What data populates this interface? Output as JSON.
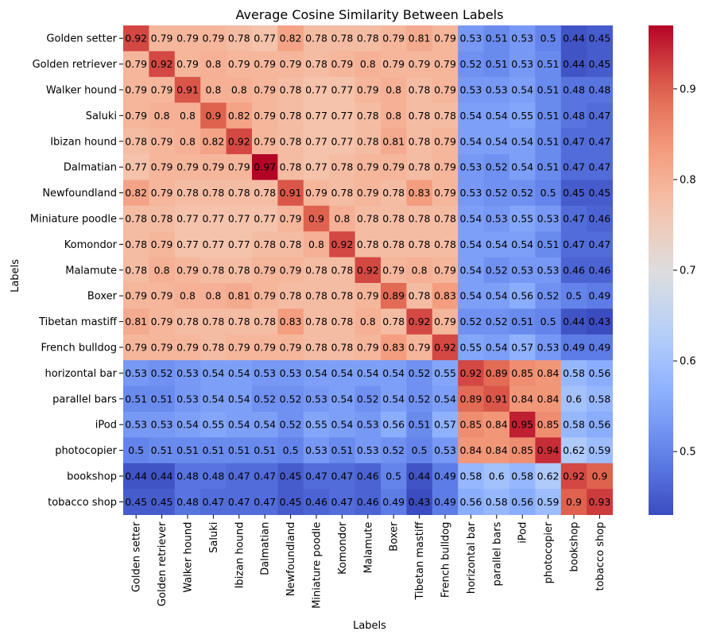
{
  "chart_data": {
    "type": "heatmap",
    "title": "Average Cosine Similarity Between Labels",
    "xlabel": "Labels",
    "ylabel": "Labels",
    "labels": [
      "Golden setter",
      "Golden retriever",
      "Walker hound",
      "Saluki",
      "Ibizan hound",
      "Dalmatian",
      "Newfoundland",
      "Miniature poodle",
      "Komondor",
      "Malamute",
      "Boxer",
      "Tibetan mastiff",
      "French bulldog",
      "horizontal bar",
      "parallel bars",
      "iPod",
      "photocopier",
      "bookshop",
      "tobacco shop"
    ],
    "values": [
      [
        0.92,
        0.79,
        0.79,
        0.79,
        0.78,
        0.77,
        0.82,
        0.78,
        0.78,
        0.78,
        0.79,
        0.81,
        0.79,
        0.53,
        0.51,
        0.53,
        0.5,
        0.44,
        0.45
      ],
      [
        0.79,
        0.92,
        0.79,
        0.8,
        0.79,
        0.79,
        0.79,
        0.78,
        0.79,
        0.8,
        0.79,
        0.79,
        0.79,
        0.52,
        0.51,
        0.53,
        0.51,
        0.44,
        0.45
      ],
      [
        0.79,
        0.79,
        0.91,
        0.8,
        0.8,
        0.79,
        0.78,
        0.77,
        0.77,
        0.79,
        0.8,
        0.78,
        0.79,
        0.53,
        0.53,
        0.54,
        0.51,
        0.48,
        0.48
      ],
      [
        0.79,
        0.8,
        0.8,
        0.9,
        0.82,
        0.79,
        0.78,
        0.77,
        0.77,
        0.78,
        0.8,
        0.78,
        0.78,
        0.54,
        0.54,
        0.55,
        0.51,
        0.48,
        0.47
      ],
      [
        0.78,
        0.79,
        0.8,
        0.82,
        0.92,
        0.79,
        0.78,
        0.77,
        0.77,
        0.78,
        0.81,
        0.78,
        0.79,
        0.54,
        0.54,
        0.54,
        0.51,
        0.47,
        0.47
      ],
      [
        0.77,
        0.79,
        0.79,
        0.79,
        0.79,
        0.97,
        0.78,
        0.77,
        0.78,
        0.79,
        0.79,
        0.78,
        0.79,
        0.53,
        0.52,
        0.54,
        0.51,
        0.47,
        0.47
      ],
      [
        0.82,
        0.79,
        0.78,
        0.78,
        0.78,
        0.78,
        0.91,
        0.79,
        0.78,
        0.79,
        0.78,
        0.83,
        0.79,
        0.53,
        0.52,
        0.52,
        0.5,
        0.45,
        0.45
      ],
      [
        0.78,
        0.78,
        0.77,
        0.77,
        0.77,
        0.77,
        0.79,
        0.9,
        0.8,
        0.78,
        0.78,
        0.78,
        0.78,
        0.54,
        0.53,
        0.55,
        0.53,
        0.47,
        0.46
      ],
      [
        0.78,
        0.79,
        0.77,
        0.77,
        0.77,
        0.78,
        0.78,
        0.8,
        0.92,
        0.78,
        0.78,
        0.78,
        0.78,
        0.54,
        0.54,
        0.54,
        0.51,
        0.47,
        0.47
      ],
      [
        0.78,
        0.8,
        0.79,
        0.78,
        0.78,
        0.79,
        0.79,
        0.78,
        0.78,
        0.92,
        0.79,
        0.8,
        0.79,
        0.54,
        0.52,
        0.53,
        0.53,
        0.46,
        0.46
      ],
      [
        0.79,
        0.79,
        0.8,
        0.8,
        0.81,
        0.79,
        0.78,
        0.78,
        0.78,
        0.79,
        0.89,
        0.78,
        0.83,
        0.54,
        0.54,
        0.56,
        0.52,
        0.5,
        0.49
      ],
      [
        0.81,
        0.79,
        0.78,
        0.78,
        0.78,
        0.78,
        0.83,
        0.78,
        0.78,
        0.8,
        0.78,
        0.92,
        0.79,
        0.52,
        0.52,
        0.51,
        0.5,
        0.44,
        0.43
      ],
      [
        0.79,
        0.79,
        0.79,
        0.78,
        0.79,
        0.79,
        0.79,
        0.78,
        0.78,
        0.79,
        0.83,
        0.79,
        0.92,
        0.55,
        0.54,
        0.57,
        0.53,
        0.49,
        0.49
      ],
      [
        0.53,
        0.52,
        0.53,
        0.54,
        0.54,
        0.53,
        0.53,
        0.54,
        0.54,
        0.54,
        0.54,
        0.52,
        0.55,
        0.92,
        0.89,
        0.85,
        0.84,
        0.58,
        0.56
      ],
      [
        0.51,
        0.51,
        0.53,
        0.54,
        0.54,
        0.52,
        0.52,
        0.53,
        0.54,
        0.52,
        0.54,
        0.52,
        0.54,
        0.89,
        0.91,
        0.84,
        0.84,
        0.6,
        0.58
      ],
      [
        0.53,
        0.53,
        0.54,
        0.55,
        0.54,
        0.54,
        0.52,
        0.55,
        0.54,
        0.53,
        0.56,
        0.51,
        0.57,
        0.85,
        0.84,
        0.95,
        0.85,
        0.58,
        0.56
      ],
      [
        0.5,
        0.51,
        0.51,
        0.51,
        0.51,
        0.51,
        0.5,
        0.53,
        0.51,
        0.53,
        0.52,
        0.5,
        0.53,
        0.84,
        0.84,
        0.85,
        0.94,
        0.62,
        0.59
      ],
      [
        0.44,
        0.44,
        0.48,
        0.48,
        0.47,
        0.47,
        0.45,
        0.47,
        0.47,
        0.46,
        0.5,
        0.44,
        0.49,
        0.58,
        0.6,
        0.58,
        0.62,
        0.92,
        0.9
      ],
      [
        0.45,
        0.45,
        0.48,
        0.47,
        0.47,
        0.47,
        0.45,
        0.46,
        0.47,
        0.46,
        0.49,
        0.43,
        0.49,
        0.56,
        0.58,
        0.56,
        0.59,
        0.9,
        0.93
      ]
    ],
    "colormap": "coolwarm",
    "vmin": 0.43,
    "vmax": 0.97,
    "colorbar_ticks": [
      "0.5",
      "0.6",
      "0.7",
      "0.8",
      "0.9"
    ],
    "grid": false,
    "legend": "colorbar-right"
  }
}
